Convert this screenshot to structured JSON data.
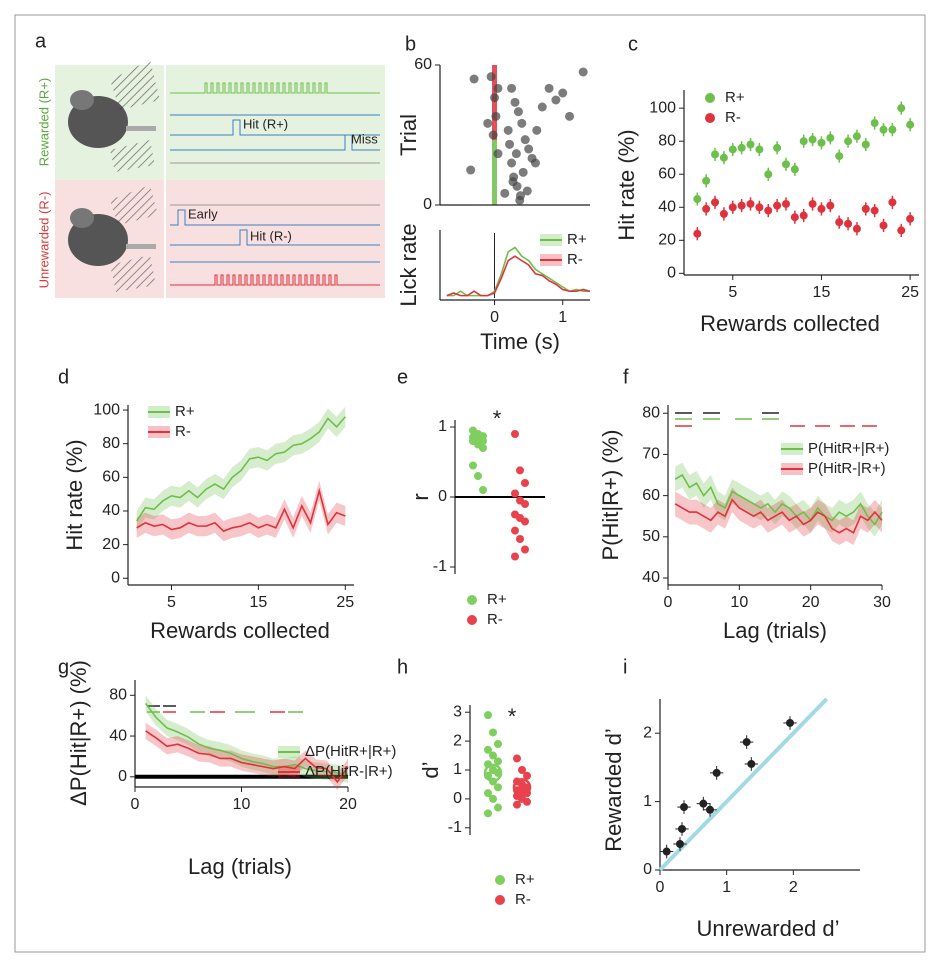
{
  "diagram": {
    "label": "a",
    "groups": [
      {
        "label": "Rewarded (R+)",
        "events": [
          "Hit (R+)",
          "Miss"
        ]
      },
      {
        "label": "Unrewarded (R-)",
        "events": [
          "Early",
          "Hit (R-)"
        ]
      }
    ]
  },
  "chart_data": [
    {
      "type": "scatter",
      "panel": "b",
      "ylabel": "Trial",
      "color": "#444444",
      "x": [
        -0.05,
        0.0,
        0.02,
        -0.02,
        0.05,
        -0.3,
        -0.35,
        0.25,
        0.3,
        0.35,
        0.4,
        0.2,
        0.45,
        0.5,
        0.55,
        0.6,
        0.7,
        0.8,
        1.0,
        1.1,
        1.3,
        0.28,
        0.33,
        0.38,
        0.22,
        0.42,
        0.32,
        0.27,
        0.37,
        0.62,
        0.9,
        0.15,
        0.25,
        0.05,
        -0.1,
        0.48
      ],
      "values": [
        55,
        46,
        38,
        30,
        22,
        54,
        15,
        50,
        44,
        40,
        35,
        32,
        28,
        24,
        20,
        18,
        42,
        50,
        48,
        38,
        57,
        12,
        8,
        4,
        26,
        14,
        22,
        10,
        2,
        32,
        45,
        5,
        18,
        50,
        35,
        6
      ],
      "xlim": [
        -0.8,
        1.4
      ],
      "ylim": [
        0,
        60
      ],
      "yticks": [
        0,
        60
      ]
    },
    {
      "type": "line",
      "xlabel": "Time (s)",
      "ylabel": "Lick rate",
      "x": [
        -0.7,
        -0.6,
        -0.5,
        -0.4,
        -0.3,
        -0.2,
        -0.1,
        0.0,
        0.1,
        0.2,
        0.3,
        0.4,
        0.5,
        0.6,
        0.7,
        0.8,
        0.9,
        1.0,
        1.1,
        1.2,
        1.3,
        1.4
      ],
      "series": [
        {
          "name": "R+",
          "color": "#6dbf4b",
          "values": [
            0.05,
            0.05,
            0.1,
            0.05,
            0.05,
            0.05,
            0.05,
            0.1,
            0.3,
            0.55,
            0.6,
            0.5,
            0.45,
            0.35,
            0.3,
            0.25,
            0.2,
            0.15,
            0.1,
            0.12,
            0.1,
            0.1
          ]
        },
        {
          "name": "R-",
          "color": "#e0323c",
          "values": [
            0.05,
            0.08,
            0.05,
            0.05,
            0.1,
            0.05,
            0.05,
            0.08,
            0.25,
            0.45,
            0.5,
            0.45,
            0.4,
            0.3,
            0.28,
            0.22,
            0.18,
            0.12,
            0.1,
            0.1,
            0.12,
            0.1
          ]
        }
      ],
      "xlim": [
        -0.8,
        1.4
      ],
      "xticks": [
        0,
        1
      ],
      "ylim": [
        0,
        0.8
      ]
    },
    {
      "type": "scatter",
      "panel": "c",
      "xlabel": "Rewards collected",
      "ylabel": "Hit rate (%)",
      "x": [
        1,
        2,
        3,
        4,
        5,
        6,
        7,
        8,
        9,
        10,
        11,
        12,
        13,
        14,
        15,
        16,
        17,
        18,
        19,
        20,
        21,
        22,
        23,
        24,
        25
      ],
      "series": [
        {
          "name": "R+",
          "color": "#6dbf4b",
          "error": 4,
          "values": [
            45,
            56,
            72,
            70,
            75,
            76,
            78,
            75,
            60,
            76,
            66,
            63,
            80,
            81,
            79,
            82,
            71,
            80,
            83,
            78,
            91,
            87,
            87,
            100,
            90
          ]
        },
        {
          "name": "R-",
          "color": "#e0323c",
          "error": 4,
          "values": [
            24,
            39,
            43,
            36,
            40,
            41,
            42,
            40,
            38,
            41,
            42,
            34,
            35,
            42,
            39,
            41,
            31,
            30,
            27,
            39,
            38,
            29,
            43,
            26,
            33
          ]
        }
      ],
      "xlim": [
        -0.5,
        26
      ],
      "xticks": [
        5,
        15,
        25
      ],
      "ylim": [
        -1,
        111
      ],
      "yticks": [
        0,
        20,
        40,
        60,
        80,
        100
      ]
    },
    {
      "type": "line",
      "panel": "d",
      "xlabel": "Rewards collected",
      "ylabel": "Hit rate (%)",
      "x": [
        1,
        2,
        3,
        4,
        5,
        6,
        7,
        8,
        9,
        10,
        11,
        12,
        13,
        14,
        15,
        16,
        17,
        18,
        19,
        20,
        21,
        22,
        23,
        24,
        25
      ],
      "series": [
        {
          "name": "R+",
          "color": "#6dbf4b",
          "error": 6,
          "values": [
            34,
            42,
            41,
            46,
            49,
            48,
            52,
            48,
            53,
            56,
            53,
            60,
            64,
            71,
            72,
            70,
            74,
            75,
            79,
            80,
            83,
            87,
            95,
            90,
            96
          ]
        },
        {
          "name": "R-",
          "color": "#e0323c",
          "error": 6,
          "values": [
            30,
            33,
            31,
            32,
            29,
            30,
            33,
            31,
            31,
            33,
            28,
            30,
            31,
            33,
            30,
            32,
            30,
            41,
            30,
            43,
            33,
            52,
            32,
            39,
            37
          ]
        }
      ],
      "xlim": [
        0,
        26
      ],
      "xticks": [
        5,
        15,
        25
      ],
      "ylim": [
        -4,
        103
      ],
      "yticks": [
        0,
        20,
        40,
        60,
        80,
        100
      ]
    },
    {
      "type": "strip",
      "panel": "e",
      "ylabel": "r",
      "annotation": "*",
      "series": [
        {
          "name": "R+",
          "color": "#7fcf5f",
          "values": [
            0.95,
            0.9,
            0.87,
            0.85,
            0.82,
            0.8,
            0.8,
            0.75,
            0.7,
            0.45,
            0.3,
            0.1
          ]
        },
        {
          "name": "R-",
          "color": "#e8424c",
          "values": [
            0.9,
            0.38,
            0.2,
            0.05,
            -0.05,
            -0.1,
            -0.25,
            -0.3,
            -0.35,
            -0.48,
            -0.6,
            -0.75,
            -0.85
          ]
        }
      ],
      "ylim": [
        -1.1,
        1.1
      ],
      "yticks": [
        -1,
        0,
        1
      ]
    },
    {
      "type": "line",
      "panel": "f",
      "xlabel": "Lag (trials)",
      "ylabel": "P(Hit|R+) (%)",
      "x": [
        1,
        2,
        3,
        4,
        5,
        6,
        7,
        8,
        9,
        10,
        11,
        12,
        13,
        14,
        15,
        16,
        17,
        18,
        19,
        20,
        21,
        22,
        23,
        24,
        25,
        26,
        27,
        28,
        29,
        30
      ],
      "series": [
        {
          "name": "P(HitR+|R+)",
          "color": "#6dbf4b",
          "error": 3,
          "values": [
            64,
            65,
            62,
            63,
            60,
            62,
            58,
            57,
            61,
            60,
            59,
            58,
            57,
            58,
            56,
            58,
            57,
            55,
            56,
            54,
            57,
            55,
            54,
            56,
            55,
            56,
            58,
            55,
            53,
            56
          ]
        },
        {
          "name": "P(HitR-|R+)",
          "color": "#e0323c",
          "error": 3,
          "values": [
            58,
            57,
            56,
            56,
            55,
            54,
            56,
            55,
            59,
            57,
            56,
            55,
            56,
            54,
            55,
            56,
            54,
            55,
            53,
            54,
            56,
            55,
            52,
            51,
            52,
            51,
            55,
            54,
            56,
            54
          ]
        }
      ],
      "xlim": [
        0,
        30
      ],
      "xticks": [
        0,
        10,
        20,
        30
      ],
      "ylim": [
        38.3,
        82
      ],
      "yticks": [
        40,
        50,
        60,
        70,
        80
      ]
    },
    {
      "type": "line",
      "panel": "g",
      "xlabel": "Lag (trials)",
      "ylabel": "ΔP(Hit|R+) (%)",
      "x": [
        1,
        2,
        3,
        4,
        5,
        6,
        7,
        8,
        9,
        10,
        11,
        12,
        13,
        14,
        15,
        16,
        17,
        18,
        19,
        20
      ],
      "series": [
        {
          "name": "ΔP(HitR+|R+)",
          "color": "#6dbf4b",
          "error": 8,
          "values": [
            72,
            58,
            48,
            44,
            39,
            32,
            28,
            26,
            23,
            18,
            15,
            13,
            10,
            10,
            12,
            8,
            6,
            5,
            4,
            2
          ]
        },
        {
          "name": "ΔP(HitR-|R+)",
          "color": "#e0323c",
          "error": 8,
          "values": [
            45,
            38,
            30,
            32,
            28,
            23,
            22,
            18,
            18,
            14,
            12,
            10,
            8,
            10,
            8,
            18,
            9,
            8,
            -5,
            10
          ]
        }
      ],
      "xlim": [
        0,
        20
      ],
      "xticks": [
        0,
        10,
        20
      ],
      "ylim": [
        -10,
        95
      ],
      "yticks": [
        0,
        40,
        80
      ]
    },
    {
      "type": "strip",
      "panel": "h",
      "ylabel": "d’",
      "annotation": "*",
      "series": [
        {
          "name": "R+",
          "color": "#7fcf5f",
          "mean": 0.9,
          "values": [
            2.9,
            2.3,
            1.9,
            1.7,
            1.5,
            1.3,
            1.2,
            1.0,
            0.9,
            0.8,
            0.6,
            0.4,
            0.2,
            0.0,
            -0.3,
            -0.5
          ]
        },
        {
          "name": "R-",
          "color": "#e8424c",
          "mean": 0.4,
          "values": [
            1.4,
            1.0,
            0.8,
            0.6,
            0.5,
            0.4,
            0.3,
            0.25,
            0.2,
            0.1,
            0.0,
            -0.1,
            -0.2
          ]
        }
      ],
      "ylim": [
        -1.25,
        3.25
      ],
      "yticks": [
        -1,
        0,
        1,
        2,
        3
      ]
    },
    {
      "type": "scatter",
      "panel": "i",
      "xlabel": "Unrewarded d’",
      "ylabel": "Rewarded d’",
      "color": "#222222",
      "x": [
        0.1,
        0.3,
        0.33,
        0.36,
        0.65,
        0.75,
        0.85,
        1.3,
        1.37,
        1.95
      ],
      "values": [
        0.27,
        0.38,
        0.6,
        0.92,
        0.97,
        0.88,
        1.42,
        1.87,
        1.55,
        2.15
      ],
      "xerr": 0.1,
      "yerr": 0.1,
      "xlim": [
        0,
        3
      ],
      "xticks": [
        0,
        1,
        2
      ],
      "ylim": [
        0,
        2.5
      ],
      "yticks": [
        0,
        1,
        2
      ]
    }
  ]
}
